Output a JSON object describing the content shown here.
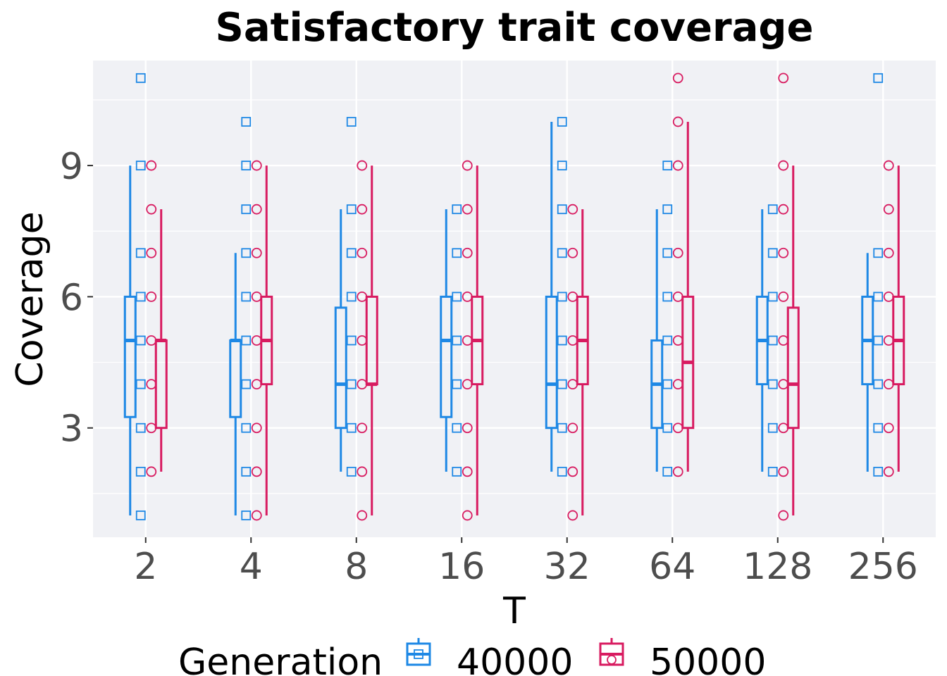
{
  "chart_data": {
    "type": "boxplot",
    "title": "Satisfactory trait coverage",
    "xlabel": "T",
    "ylabel": "Coverage",
    "categories": [
      "2",
      "4",
      "8",
      "16",
      "32",
      "64",
      "128",
      "256"
    ],
    "ylim": [
      0.5,
      11.4
    ],
    "yticks": [
      3,
      6,
      9
    ],
    "grid": true,
    "legend": {
      "title": "Generation",
      "position": "bottom"
    },
    "series": [
      {
        "name": "40000",
        "color": "#1e88e5",
        "marker": "square",
        "boxes": [
          {
            "min": 1,
            "q1": 3.25,
            "median": 5,
            "q3": 6,
            "max": 9
          },
          {
            "min": 1,
            "q1": 3.25,
            "median": 5,
            "q3": 5,
            "max": 7
          },
          {
            "min": 2,
            "q1": 3,
            "median": 4,
            "q3": 5.75,
            "max": 8
          },
          {
            "min": 2,
            "q1": 3.25,
            "median": 5,
            "q3": 6,
            "max": 8
          },
          {
            "min": 2,
            "q1": 3,
            "median": 4,
            "q3": 6,
            "max": 10
          },
          {
            "min": 2,
            "q1": 3,
            "median": 4,
            "q3": 5,
            "max": 8
          },
          {
            "min": 2,
            "q1": 4,
            "median": 5,
            "q3": 6,
            "max": 8
          },
          {
            "min": 2,
            "q1": 4,
            "median": 5,
            "q3": 6,
            "max": 7
          }
        ],
        "points": [
          [
            1,
            2,
            3,
            4,
            5,
            6,
            7,
            9,
            11
          ],
          [
            1,
            2,
            3,
            4,
            5,
            6,
            7,
            8,
            9,
            10
          ],
          [
            2,
            3,
            4,
            5,
            6,
            7,
            8,
            10
          ],
          [
            2,
            3,
            4,
            5,
            6,
            7,
            8
          ],
          [
            2,
            3,
            4,
            5,
            6,
            7,
            8,
            9,
            10
          ],
          [
            2,
            3,
            4,
            5,
            6,
            7,
            8,
            9
          ],
          [
            2,
            3,
            4,
            5,
            6,
            7,
            8
          ],
          [
            2,
            3,
            4,
            5,
            6,
            7,
            11
          ]
        ]
      },
      {
        "name": "50000",
        "color": "#d81b60",
        "marker": "circle",
        "boxes": [
          {
            "min": 2,
            "q1": 3,
            "median": 5,
            "q3": 5,
            "max": 8
          },
          {
            "min": 1,
            "q1": 4,
            "median": 5,
            "q3": 6,
            "max": 9
          },
          {
            "min": 1,
            "q1": 4,
            "median": 4,
            "q3": 6,
            "max": 9
          },
          {
            "min": 1,
            "q1": 4,
            "median": 5,
            "q3": 6,
            "max": 9
          },
          {
            "min": 1,
            "q1": 4,
            "median": 5,
            "q3": 6,
            "max": 8
          },
          {
            "min": 2,
            "q1": 3,
            "median": 4.5,
            "q3": 6,
            "max": 10
          },
          {
            "min": 1,
            "q1": 3,
            "median": 4,
            "q3": 5.75,
            "max": 9
          },
          {
            "min": 2,
            "q1": 4,
            "median": 5,
            "q3": 6,
            "max": 9
          }
        ],
        "points": [
          [
            2,
            3,
            4,
            5,
            6,
            7,
            8,
            9
          ],
          [
            1,
            2,
            3,
            4,
            5,
            6,
            7,
            8,
            9
          ],
          [
            1,
            2,
            3,
            4,
            5,
            6,
            7,
            8,
            9
          ],
          [
            1,
            2,
            3,
            4,
            5,
            6,
            7,
            8,
            9
          ],
          [
            1,
            2,
            3,
            4,
            5,
            6,
            7,
            8
          ],
          [
            2,
            3,
            4,
            5,
            6,
            7,
            9,
            10,
            11
          ],
          [
            1,
            2,
            3,
            4,
            5,
            6,
            7,
            8,
            9,
            11
          ],
          [
            2,
            3,
            4,
            5,
            6,
            7,
            8,
            9
          ]
        ]
      }
    ]
  }
}
